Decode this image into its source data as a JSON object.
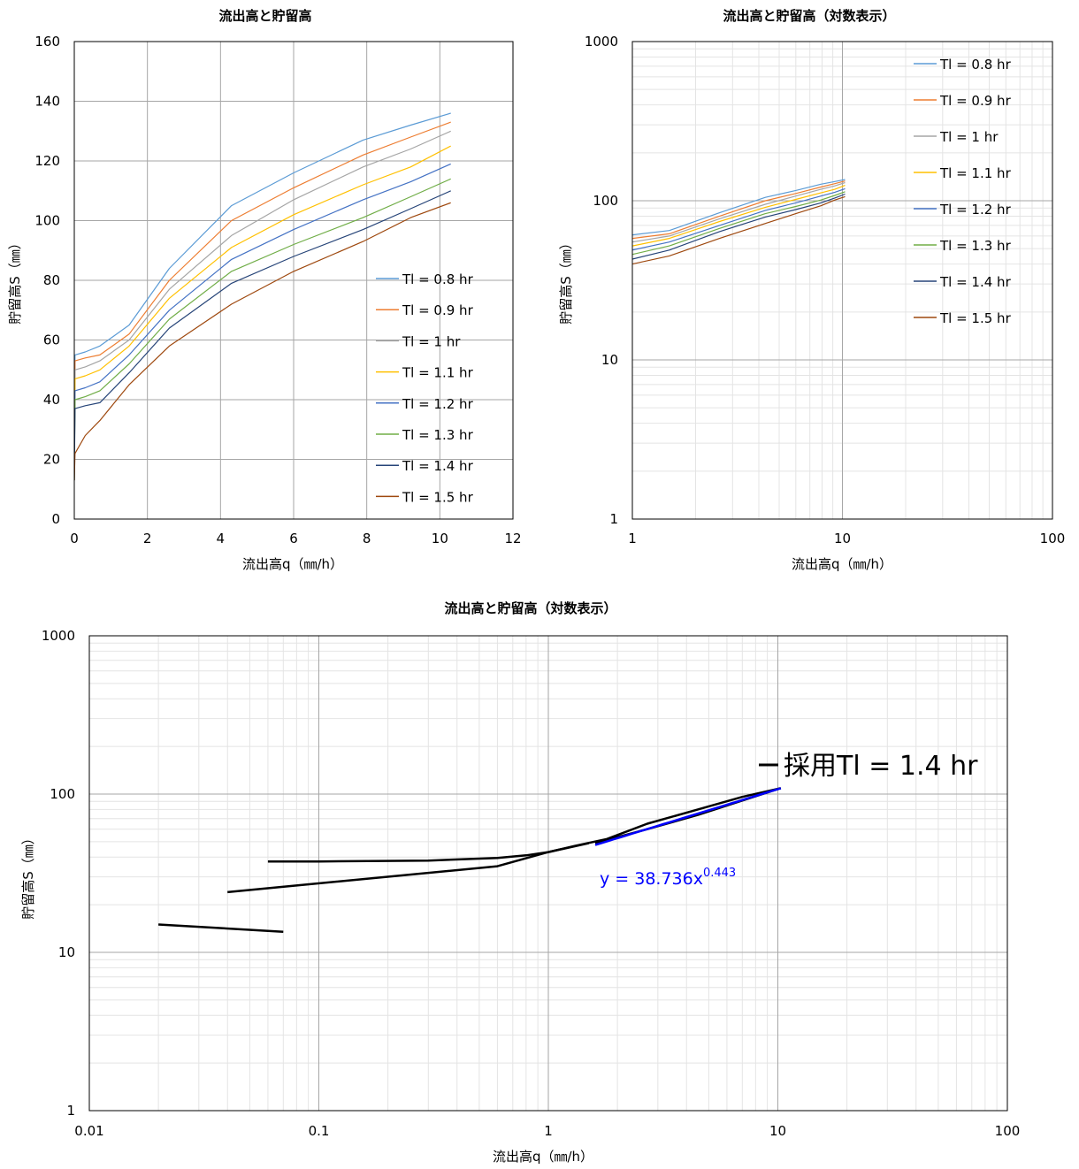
{
  "chart_data": [
    {
      "id": "c1",
      "type": "line",
      "title": "流出高と貯留高",
      "xlabel": "流出高q（㎜/h）",
      "ylabel": "貯留高S（㎜）",
      "xscale": "linear",
      "yscale": "linear",
      "xlim": [
        0,
        12
      ],
      "ylim": [
        0,
        160
      ],
      "xticks": [
        0,
        2,
        4,
        6,
        8,
        10,
        12
      ],
      "yticks": [
        0,
        20,
        40,
        60,
        80,
        100,
        120,
        140,
        160
      ],
      "xtick_labels": [
        "0",
        "2",
        "4",
        "6",
        "8",
        "10",
        "12"
      ],
      "ytick_labels": [
        "0",
        "20",
        "40",
        "60",
        "80",
        "100",
        "120",
        "140",
        "160"
      ],
      "grid": true,
      "legend_position": "right",
      "series": [
        {
          "name": "Tl = 0.8 hr",
          "color": "#5b9bd5",
          "x": [
            0,
            0.02,
            0.3,
            0.7,
            1.5,
            2.6,
            4.3,
            6,
            7.9,
            9.2,
            10.3
          ],
          "y": [
            13,
            55,
            56,
            58,
            65,
            84,
            105,
            116,
            127,
            132,
            136
          ]
        },
        {
          "name": "Tl = 0.9 hr",
          "color": "#ed7d31",
          "x": [
            0,
            0.02,
            0.3,
            0.7,
            1.5,
            2.6,
            4.3,
            6,
            7.9,
            9.2,
            10.3
          ],
          "y": [
            13,
            53,
            54,
            55,
            62,
            80,
            100,
            111,
            122,
            128,
            133
          ]
        },
        {
          "name": "Tl = 1 hr",
          "color": "#a5a5a5",
          "x": [
            0,
            0.02,
            0.3,
            0.7,
            1.5,
            2.6,
            4.3,
            6,
            7.9,
            9.2,
            10.3
          ],
          "y": [
            13,
            50,
            51,
            53,
            60,
            77,
            95,
            107,
            118,
            124,
            130
          ]
        },
        {
          "name": "Tl = 1.1 hr",
          "color": "#ffc000",
          "x": [
            0,
            0.02,
            0.3,
            0.7,
            1.5,
            2.6,
            4.3,
            6,
            7.9,
            9.2,
            10.3
          ],
          "y": [
            13,
            47,
            48,
            50,
            58,
            74,
            91,
            102,
            112,
            118,
            125
          ]
        },
        {
          "name": "Tl = 1.2 hr",
          "color": "#4472c4",
          "x": [
            0,
            0.02,
            0.3,
            0.7,
            1.5,
            2.6,
            4.3,
            6,
            7.9,
            9.2,
            10.3
          ],
          "y": [
            13,
            43,
            44,
            46,
            55,
            70,
            87,
            97,
            107,
            113,
            119
          ]
        },
        {
          "name": "Tl = 1.3 hr",
          "color": "#70ad47",
          "x": [
            0,
            0.02,
            0.3,
            0.7,
            1.5,
            2.6,
            4.3,
            6,
            7.9,
            9.2,
            10.3
          ],
          "y": [
            13,
            40,
            41,
            43,
            52,
            67,
            83,
            92,
            101,
            108,
            114
          ]
        },
        {
          "name": "Tl = 1.4 hr",
          "color": "#264478",
          "x": [
            0,
            0.02,
            0.3,
            0.7,
            1.5,
            2.6,
            4.3,
            6,
            7.9,
            9.2,
            10.3
          ],
          "y": [
            13,
            37,
            38,
            39,
            49,
            64,
            79,
            88,
            97,
            104,
            110
          ]
        },
        {
          "name": "Tl = 1.5 hr",
          "color": "#9e480e",
          "x": [
            0,
            0.02,
            0.3,
            0.7,
            1.5,
            2.6,
            4.3,
            6,
            7.9,
            9.2,
            10.3
          ],
          "y": [
            13,
            22,
            28,
            33,
            45,
            58,
            72,
            83,
            93,
            101,
            106
          ]
        }
      ]
    },
    {
      "id": "c2",
      "type": "line",
      "title": "流出高と貯留高（対数表示）",
      "xlabel": "流出高q（㎜/h）",
      "ylabel": "貯留高S（㎜）",
      "xscale": "log",
      "yscale": "log",
      "xlim": [
        1,
        100
      ],
      "ylim": [
        1,
        1000
      ],
      "xticks": [
        1,
        10,
        100
      ],
      "yticks": [
        1,
        10,
        100,
        1000
      ],
      "xtick_labels": [
        "1",
        "10",
        "100"
      ],
      "ytick_labels": [
        "1",
        "10",
        "100",
        "1000"
      ],
      "grid": true,
      "legend_position": "top-right",
      "series": [
        {
          "name": "Tl = 0.8 hr",
          "color": "#5b9bd5",
          "x": [
            1,
            1.5,
            2.6,
            4.3,
            6,
            7.9,
            9.2,
            10.3
          ],
          "y": [
            61,
            65,
            84,
            105,
            116,
            127,
            132,
            136
          ]
        },
        {
          "name": "Tl = 0.9 hr",
          "color": "#ed7d31",
          "x": [
            1,
            1.5,
            2.6,
            4.3,
            6,
            7.9,
            9.2,
            10.3
          ],
          "y": [
            58,
            62,
            80,
            100,
            111,
            122,
            128,
            133
          ]
        },
        {
          "name": "Tl = 1 hr",
          "color": "#a5a5a5",
          "x": [
            1,
            1.5,
            2.6,
            4.3,
            6,
            7.9,
            9.2,
            10.3
          ],
          "y": [
            55,
            60,
            77,
            95,
            107,
            118,
            124,
            130
          ]
        },
        {
          "name": "Tl = 1.1 hr",
          "color": "#ffc000",
          "x": [
            1,
            1.5,
            2.6,
            4.3,
            6,
            7.9,
            9.2,
            10.3
          ],
          "y": [
            52,
            58,
            74,
            91,
            102,
            112,
            118,
            125
          ]
        },
        {
          "name": "Tl = 1.2 hr",
          "color": "#4472c4",
          "x": [
            1,
            1.5,
            2.6,
            4.3,
            6,
            7.9,
            9.2,
            10.3
          ],
          "y": [
            49,
            55,
            70,
            87,
            97,
            107,
            113,
            119
          ]
        },
        {
          "name": "Tl = 1.3 hr",
          "color": "#70ad47",
          "x": [
            1,
            1.5,
            2.6,
            4.3,
            6,
            7.9,
            9.2,
            10.3
          ],
          "y": [
            46,
            52,
            67,
            83,
            92,
            101,
            108,
            114
          ]
        },
        {
          "name": "Tl = 1.4 hr",
          "color": "#264478",
          "x": [
            1,
            1.5,
            2.6,
            4.3,
            6,
            7.9,
            9.2,
            10.3
          ],
          "y": [
            43,
            49,
            64,
            79,
            88,
            97,
            104,
            110
          ]
        },
        {
          "name": "Tl = 1.5 hr",
          "color": "#9e480e",
          "x": [
            1,
            1.5,
            2.6,
            4.3,
            6,
            7.9,
            9.2,
            10.3
          ],
          "y": [
            40,
            45,
            58,
            72,
            83,
            93,
            101,
            106
          ]
        }
      ]
    },
    {
      "id": "c3",
      "type": "line",
      "title": "流出高と貯留高（対数表示）",
      "xlabel": "流出高q（㎜/h）",
      "ylabel": "貯留高S（㎜）",
      "xscale": "log",
      "yscale": "log",
      "xlim": [
        0.01,
        100
      ],
      "ylim": [
        1,
        1000
      ],
      "xticks": [
        0.01,
        0.1,
        1,
        10,
        100
      ],
      "yticks": [
        1,
        10,
        100,
        1000
      ],
      "xtick_labels": [
        "0.01",
        "0.1",
        "1",
        "10",
        "100"
      ],
      "ytick_labels": [
        "1",
        "10",
        "100",
        "1000"
      ],
      "grid": true,
      "legend_position": "top-right",
      "series": [
        {
          "name": "採用Tl = 1.4 hr",
          "color": "#000000",
          "segments": [
            {
              "x": [
                0.02,
                0.07
              ],
              "y": [
                15,
                13.5
              ]
            },
            {
              "x": [
                0.06,
                0.1,
                0.3,
                0.6,
                0.8,
                1.0,
                1.3,
                1.8,
                2.7,
                4.5,
                7.0,
                10.3
              ],
              "y": [
                37.5,
                37.5,
                38,
                39.5,
                41,
                43,
                47,
                52,
                65,
                80,
                96,
                109
              ]
            },
            {
              "x": [
                0.04,
                0.6,
                1.0,
                1.5
              ],
              "y": [
                24,
                35,
                43,
                49
              ]
            },
            {
              "x": [
                1.6,
                2.7,
                4.5,
                7.0,
                10.3
              ],
              "y": [
                49,
                60,
                74,
                91,
                109
              ]
            }
          ]
        }
      ],
      "trendline": {
        "color": "#0000ff",
        "equation_base": "y = 38.736x",
        "equation_exponent": "0.443",
        "coef": 38.736,
        "exp": 0.443,
        "x": [
          1.6,
          10.3
        ]
      }
    }
  ]
}
